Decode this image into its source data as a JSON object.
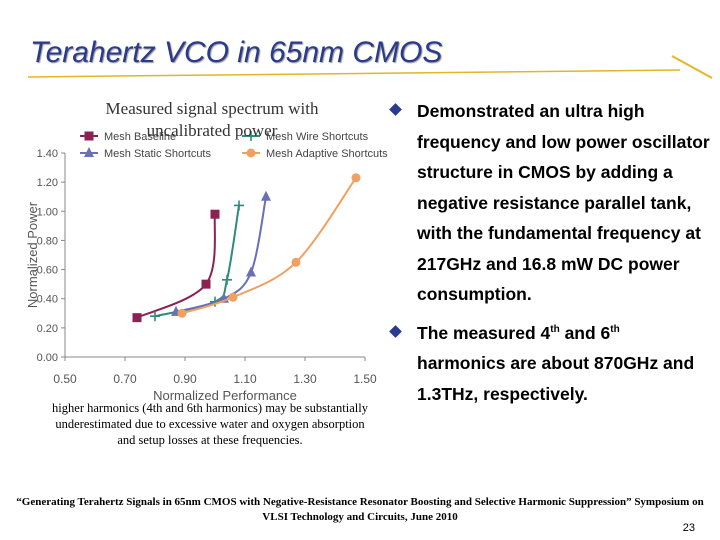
{
  "slide": {
    "title": "Terahertz VCO in 65nm CMOS",
    "caption_top": "Measured signal spectrum with uncalibrated power",
    "caption_bottom": "higher harmonics (4th and 6th harmonics) may be substantially underestimated due to excessive water and oxygen absorption and setup losses at these frequencies.",
    "bullets": [
      {
        "text": "Demonstrated an ultra high frequency and low power oscillator structure in CMOS by adding a negative resistance parallel tank, with the fundamental frequency at 217GHz and 16.8 mW DC power consumption."
      },
      {
        "pre": "The measured 4",
        "sup1": "th",
        "mid": " and 6",
        "sup2": "th",
        "post": " harmonics are about 870GHz and 1.3THz, respectively."
      }
    ],
    "reference": "“Generating Terahertz Signals in 65nm CMOS with Negative-Resistance Resonator Boosting and Selective Harmonic Suppression” Symposium on VLSI Technology and Circuits, June 2010",
    "page_number": "23",
    "accent_color": "#2a3a8c"
  },
  "chart_data": {
    "type": "line",
    "xlabel": "Normalized Performance",
    "ylabel": "Normalized Power",
    "xlim": [
      0.5,
      1.5
    ],
    "ylim": [
      0.0,
      1.4
    ],
    "xticks": [
      "0.50",
      "0.70",
      "0.90",
      "1.10",
      "1.30",
      "1.50"
    ],
    "yticks": [
      "0.00",
      "0.20",
      "0.40",
      "0.60",
      "0.80",
      "1.00",
      "1.20",
      "1.40"
    ],
    "grid": false,
    "legend_position": "top",
    "series": [
      {
        "name": "Mesh Baseline",
        "color": "#8b2252",
        "marker": "square",
        "points": [
          [
            0.74,
            0.27
          ],
          [
            0.97,
            0.5
          ],
          [
            1.0,
            0.98
          ]
        ]
      },
      {
        "name": "Mesh Wire Shortcuts",
        "color": "#2e8b7a",
        "marker": "plus",
        "points": [
          [
            0.8,
            0.28
          ],
          [
            1.0,
            0.38
          ],
          [
            1.04,
            0.53
          ],
          [
            1.08,
            1.04
          ]
        ]
      },
      {
        "name": "Mesh Static Shortcuts",
        "color": "#6a70b8",
        "marker": "triangle",
        "points": [
          [
            0.87,
            0.31
          ],
          [
            1.03,
            0.4
          ],
          [
            1.12,
            0.58
          ],
          [
            1.17,
            1.1
          ]
        ]
      },
      {
        "name": "Mesh Adaptive Shortcuts",
        "color": "#f0a060",
        "marker": "circle",
        "points": [
          [
            0.89,
            0.3
          ],
          [
            1.06,
            0.41
          ],
          [
            1.27,
            0.65
          ],
          [
            1.47,
            1.23
          ]
        ]
      }
    ]
  }
}
